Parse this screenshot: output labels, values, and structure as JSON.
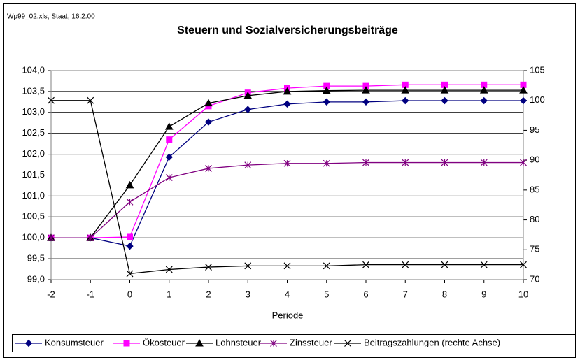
{
  "note_top": "Wp99_02.xls; Staat; 16.2.00",
  "chart_data": {
    "type": "line",
    "title": "Steuern und Sozialversicherungsbeiträge",
    "x_label": "Periode",
    "x": [
      -2,
      -1,
      0,
      1,
      2,
      3,
      4,
      5,
      6,
      7,
      8,
      9,
      10
    ],
    "xlim": [
      -2,
      10
    ],
    "xticks": [
      -2,
      -1,
      0,
      1,
      2,
      3,
      4,
      5,
      6,
      7,
      8,
      9,
      10
    ],
    "ylim": [
      99,
      104
    ],
    "yticks": [
      {
        "value": 99,
        "label": "99,0"
      },
      {
        "value": 99.5,
        "label": "99,5"
      },
      {
        "value": 100,
        "label": "100,0"
      },
      {
        "value": 100.5,
        "label": "100,5"
      },
      {
        "value": 101,
        "label": "101,0"
      },
      {
        "value": 101.5,
        "label": "101,5"
      },
      {
        "value": 102,
        "label": "102,0"
      },
      {
        "value": 102.5,
        "label": "102,5"
      },
      {
        "value": 103,
        "label": "103,0"
      },
      {
        "value": 103.5,
        "label": "103,5"
      },
      {
        "value": 104,
        "label": "104,0"
      }
    ],
    "y2lim": [
      70,
      105
    ],
    "y2ticks": [
      70,
      75,
      80,
      85,
      90,
      95,
      100,
      105
    ],
    "grid": true,
    "legend": "bottom",
    "series": [
      {
        "name": "Konsumsteuer",
        "color": "#000080",
        "marker": "diamond",
        "values": [
          100,
          100,
          99.8,
          101.93,
          102.77,
          103.07,
          103.2,
          103.25,
          103.25,
          103.28,
          103.28,
          103.28,
          103.28
        ]
      },
      {
        "name": "Ökosteuer",
        "color": "#ff00ff",
        "marker": "square",
        "values": [
          100,
          100,
          100.02,
          102.35,
          103.15,
          103.47,
          103.58,
          103.63,
          103.63,
          103.66,
          103.66,
          103.66,
          103.66
        ]
      },
      {
        "name": "Lohnsteuer",
        "color": "#000000",
        "marker": "triangle",
        "values": [
          100,
          100,
          101.26,
          102.66,
          103.22,
          103.4,
          103.5,
          103.52,
          103.53,
          103.53,
          103.53,
          103.53,
          103.53
        ]
      },
      {
        "name": "Zinssteuer",
        "color": "#800080",
        "marker": "star",
        "values": [
          100,
          100,
          100.86,
          101.44,
          101.66,
          101.74,
          101.78,
          101.78,
          101.8,
          101.8,
          101.8,
          101.8,
          101.8
        ]
      },
      {
        "name": "Beitragszahlungen (rechte Achse)",
        "color": "#000000",
        "marker": "x",
        "axis": "y2",
        "values": [
          100,
          100,
          71,
          71.7,
          72.1,
          72.3,
          72.3,
          72.3,
          72.5,
          72.5,
          72.5,
          72.5,
          72.5
        ]
      }
    ]
  }
}
